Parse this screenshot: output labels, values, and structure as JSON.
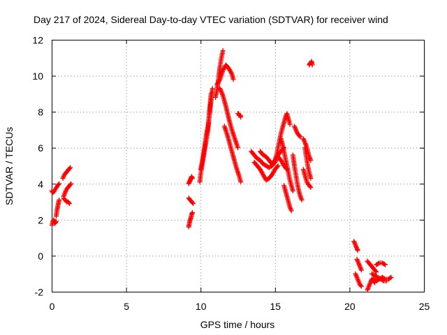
{
  "chart_data": {
    "type": "scatter",
    "title": "Day 217 of 2024, Sidereal Day-to-day VTEC variation (SDTVAR) for receiver wind",
    "xlabel": "GPS time / hours",
    "ylabel": "SDTVAR / TECUs",
    "xlim": [
      0,
      25
    ],
    "ylim": [
      -2,
      12
    ],
    "xticks": [
      0,
      5,
      10,
      15,
      20,
      25
    ],
    "yticks": [
      -2,
      0,
      2,
      4,
      6,
      8,
      10,
      12
    ],
    "grid": true,
    "marker": "plus",
    "color": "#ff0000",
    "segments": [
      {
        "x": [
          0.02,
          0.08,
          0.15,
          0.22,
          0.3
        ],
        "y": [
          1.7,
          1.9,
          2.0,
          1.8,
          1.9
        ]
      },
      {
        "x": [
          0.0,
          0.1,
          0.25,
          0.4,
          0.5
        ],
        "y": [
          3.6,
          3.5,
          3.7,
          3.9,
          4.0
        ]
      },
      {
        "x": [
          0.3,
          0.35,
          0.4,
          0.45,
          0.5
        ],
        "y": [
          2.2,
          2.5,
          2.7,
          2.9,
          3.1
        ]
      },
      {
        "x": [
          0.75,
          0.85,
          0.95,
          1.05,
          1.15,
          1.25
        ],
        "y": [
          4.3,
          4.5,
          4.6,
          4.7,
          4.8,
          4.9
        ]
      },
      {
        "x": [
          0.8,
          0.9,
          1.0,
          1.1,
          1.2,
          1.3
        ],
        "y": [
          3.3,
          3.5,
          3.7,
          3.8,
          3.9,
          4.0
        ]
      },
      {
        "x": [
          0.8,
          0.9,
          1.0,
          1.1,
          1.2
        ],
        "y": [
          3.2,
          3.1,
          3.0,
          3.0,
          2.9
        ]
      },
      {
        "x": [
          9.2,
          9.25,
          9.3,
          9.35,
          9.4,
          9.45
        ],
        "y": [
          4.0,
          4.1,
          4.2,
          4.3,
          4.4,
          4.3
        ]
      },
      {
        "x": [
          9.2,
          9.3,
          9.4,
          9.5
        ],
        "y": [
          3.2,
          3.1,
          3.0,
          2.9
        ]
      },
      {
        "x": [
          9.2,
          9.25,
          9.3,
          9.35,
          9.4,
          9.45
        ],
        "y": [
          1.6,
          1.8,
          2.0,
          2.1,
          2.3,
          2.4
        ]
      },
      {
        "x": [
          9.95,
          10.0,
          10.1,
          10.2,
          10.3,
          10.4,
          10.5,
          10.55,
          10.6,
          10.65,
          10.7
        ],
        "y": [
          4.1,
          4.5,
          5.0,
          5.5,
          6.0,
          6.5,
          7.0,
          7.5,
          8.0,
          8.5,
          9.0
        ]
      },
      {
        "x": [
          10.0,
          10.1,
          10.2,
          10.3,
          10.4,
          10.5,
          10.6,
          10.7,
          10.8
        ],
        "y": [
          4.8,
          5.2,
          5.7,
          6.2,
          6.8,
          7.2,
          7.9,
          8.6,
          9.3
        ]
      },
      {
        "x": [
          11.0,
          11.1,
          11.2,
          11.3,
          11.4,
          11.5
        ],
        "y": [
          8.8,
          9.2,
          9.8,
          10.5,
          11.0,
          11.4
        ]
      },
      {
        "x": [
          11.1,
          11.3,
          11.5,
          11.7,
          11.9,
          12.1,
          12.2
        ],
        "y": [
          9.5,
          9.8,
          10.3,
          10.6,
          10.4,
          10.1,
          9.8
        ]
      },
      {
        "x": [
          11.3,
          11.5,
          11.7,
          11.9,
          12.1,
          12.3,
          12.5
        ],
        "y": [
          9.3,
          8.9,
          8.3,
          7.6,
          7.0,
          6.5,
          6.0
        ]
      },
      {
        "x": [
          11.6,
          11.8,
          12.0,
          12.2,
          12.4,
          12.6,
          12.7
        ],
        "y": [
          7.2,
          6.7,
          6.1,
          5.5,
          4.9,
          4.4,
          4.1
        ]
      },
      {
        "x": [
          12.5,
          12.55,
          12.6,
          12.65,
          12.7
        ],
        "y": [
          7.9,
          7.9,
          7.8,
          7.8,
          7.7
        ]
      },
      {
        "x": [
          13.4,
          13.6,
          13.8,
          14.0,
          14.2,
          14.4,
          14.6,
          14.8,
          15.0,
          15.2,
          15.4,
          15.6,
          15.8
        ],
        "y": [
          5.8,
          5.6,
          5.4,
          5.3,
          5.1,
          5.0,
          4.9,
          5.0,
          5.2,
          5.5,
          5.3,
          5.0,
          4.8
        ]
      },
      {
        "x": [
          13.6,
          13.8,
          14.0,
          14.2,
          14.4,
          14.6,
          14.8,
          15.0,
          15.2
        ],
        "y": [
          5.2,
          5.0,
          4.8,
          4.5,
          4.2,
          4.3,
          4.5,
          4.8,
          5.0
        ]
      },
      {
        "x": [
          14.0,
          14.2,
          14.4,
          14.6,
          14.8,
          15.0,
          15.2,
          15.4,
          15.6
        ],
        "y": [
          5.8,
          5.6,
          5.5,
          5.3,
          5.1,
          5.3,
          5.6,
          5.8,
          6.0
        ]
      },
      {
        "x": [
          15.0,
          15.1,
          15.2,
          15.3,
          15.4,
          15.5,
          15.6,
          15.7,
          15.8,
          15.9,
          16.0
        ],
        "y": [
          5.3,
          5.6,
          6.0,
          6.4,
          6.8,
          7.1,
          7.4,
          7.7,
          7.9,
          7.6,
          7.3
        ]
      },
      {
        "x": [
          15.4,
          15.5,
          15.6,
          15.7,
          15.8,
          15.9,
          16.0,
          16.1,
          16.2
        ],
        "y": [
          6.5,
          6.2,
          5.8,
          5.4,
          5.0,
          4.6,
          4.2,
          3.9,
          3.6
        ]
      },
      {
        "x": [
          15.6,
          15.7,
          15.8,
          15.9,
          16.0,
          16.1
        ],
        "y": [
          3.9,
          3.6,
          3.3,
          3.0,
          2.7,
          2.5
        ]
      },
      {
        "x": [
          16.2,
          16.3,
          16.4,
          16.5,
          16.6,
          16.7,
          16.8
        ],
        "y": [
          5.6,
          5.0,
          4.5,
          4.0,
          3.6,
          3.3,
          3.1
        ]
      },
      {
        "x": [
          16.3,
          16.4,
          16.5,
          16.6,
          16.7
        ],
        "y": [
          7.2,
          7.0,
          6.8,
          6.7,
          6.6
        ]
      },
      {
        "x": [
          16.9,
          17.0,
          17.1,
          17.2,
          17.3,
          17.4
        ],
        "y": [
          6.5,
          6.3,
          6.1,
          5.8,
          5.5,
          5.3
        ]
      },
      {
        "x": [
          16.9,
          17.0,
          17.1,
          17.2,
          17.3,
          17.4
        ],
        "y": [
          4.8,
          4.5,
          4.2,
          4.0,
          3.9,
          3.8
        ]
      },
      {
        "x": [
          17.0,
          17.1,
          17.2,
          17.3,
          17.4
        ],
        "y": [
          6.0,
          5.5,
          5.0,
          4.6,
          4.3
        ]
      },
      {
        "x": [
          17.3,
          17.35,
          17.4,
          17.45,
          17.5
        ],
        "y": [
          10.6,
          10.7,
          10.7,
          10.8,
          10.6
        ]
      },
      {
        "x": [
          20.3,
          20.4,
          20.5,
          20.55
        ],
        "y": [
          0.8,
          0.6,
          0.4,
          0.3
        ]
      },
      {
        "x": [
          20.5,
          20.6,
          20.7,
          20.8
        ],
        "y": [
          -0.2,
          -0.4,
          -0.6,
          -0.8
        ]
      },
      {
        "x": [
          20.4,
          20.5,
          20.6,
          20.7,
          20.8
        ],
        "y": [
          -1.0,
          -1.2,
          -1.4,
          -1.6,
          -1.7
        ]
      },
      {
        "x": [
          21.2,
          21.3,
          21.4,
          21.5,
          21.6,
          21.7
        ],
        "y": [
          -1.9,
          -1.7,
          -1.5,
          -1.3,
          -1.4,
          -1.5
        ]
      },
      {
        "x": [
          21.2,
          21.3,
          21.4,
          21.5,
          21.6,
          21.7,
          21.8
        ],
        "y": [
          -0.3,
          -0.4,
          -0.5,
          -0.6,
          -0.7,
          -0.8,
          -0.9
        ]
      },
      {
        "x": [
          21.6,
          21.8,
          22.0,
          22.2,
          22.4,
          22.6,
          22.8
        ],
        "y": [
          -1.3,
          -1.4,
          -1.3,
          -1.2,
          -1.3,
          -1.3,
          -1.2
        ]
      },
      {
        "x": [
          21.8,
          22.0,
          22.2,
          22.4
        ],
        "y": [
          -0.5,
          -0.4,
          -0.4,
          -0.5
        ]
      },
      {
        "x": [
          21.5,
          21.7,
          21.9,
          22.1,
          22.3,
          22.5
        ],
        "y": [
          -1.0,
          -1.1,
          -1.2,
          -1.3,
          -1.4,
          -1.4
        ]
      }
    ]
  }
}
